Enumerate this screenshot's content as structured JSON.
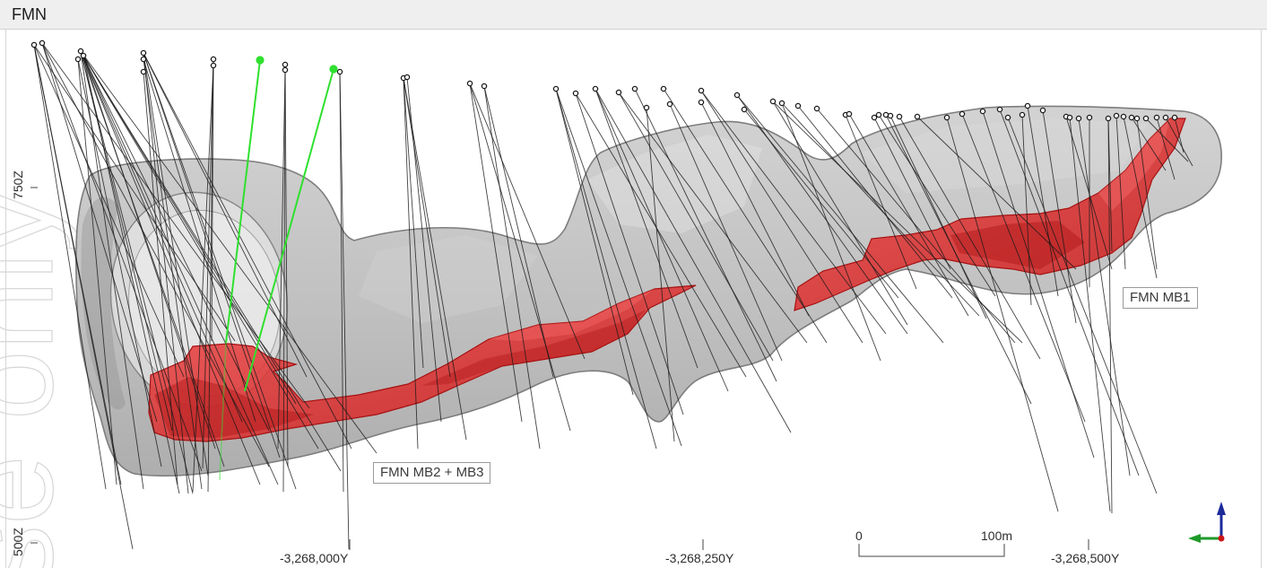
{
  "panel": {
    "title": "FMN"
  },
  "watermark": {
    "text": "se only"
  },
  "labels": {
    "mb2_mb3": "FMN MB2 + MB3",
    "mb1": "FMN MB1"
  },
  "axes": {
    "z_labels": [
      "750Z",
      "500Z"
    ],
    "y_labels": [
      "-3,268,000Y",
      "-3,268,250Y",
      "-3,268,500Y"
    ]
  },
  "scale_bar": {
    "start_label": "0",
    "end_label": "100m"
  },
  "axis_triad": {
    "icon": "xyz-axis-triad-icon"
  },
  "colors": {
    "ore_body": "#e02a2a",
    "ore_body_edge": "#a81212",
    "envelope": "#b4b4b4",
    "envelope_edge": "#7d7d7d",
    "drill_holes": "#1a1a1a",
    "highlight_holes": "#2fe02f",
    "axis_up": "#1c2a9a",
    "axis_horizontal": "#1f9a2a",
    "axis_origin": "#cc1515"
  }
}
